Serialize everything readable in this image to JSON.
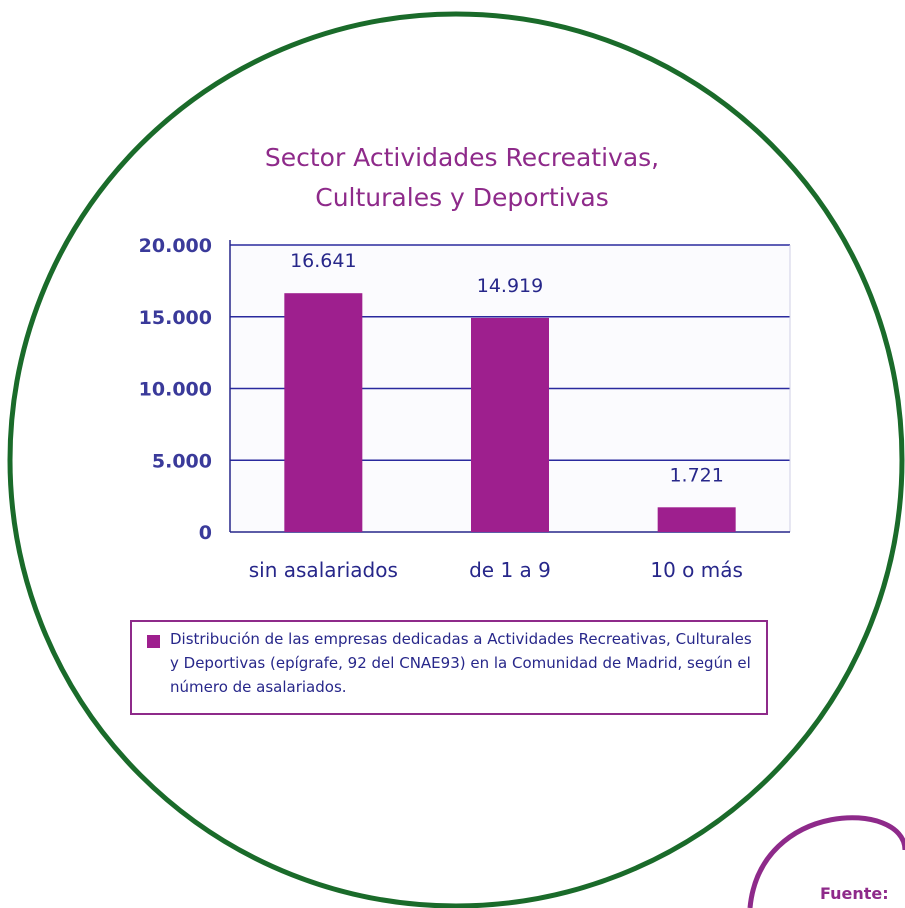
{
  "chart_data": {
    "type": "bar",
    "title_lines": [
      "Sector Actividades Recreativas,",
      "Culturales y Deportivas"
    ],
    "categories": [
      "sin asalariados",
      "de 1 a 9",
      "10 o más"
    ],
    "values": [
      16641,
      14919,
      1721
    ],
    "value_labels": [
      "16.641",
      "14.919",
      "1.721"
    ],
    "yticks": [
      {
        "value": 0,
        "label": "0"
      },
      {
        "value": 5000,
        "label": "5.000"
      },
      {
        "value": 10000,
        "label": "10.000"
      },
      {
        "value": 15000,
        "label": "15.000"
      },
      {
        "value": 20000,
        "label": "20.000"
      }
    ],
    "ylim": [
      0,
      20000
    ],
    "grid": true,
    "bar_color": "#9e1f8e"
  },
  "legend": {
    "text": "Distribución de las empresas dedicadas a Actividades Recreativas, Culturales y Deportivas (epígrafe, 92 del CNAE93) en la Comunidad de Madrid, según el número de asalariados."
  },
  "footer": {
    "source_label": "Fuente:"
  },
  "colors": {
    "circle": "#1a6b2a",
    "title": "#8e2a8a",
    "axis": "#27278a",
    "grid": "#2a2a9e"
  }
}
